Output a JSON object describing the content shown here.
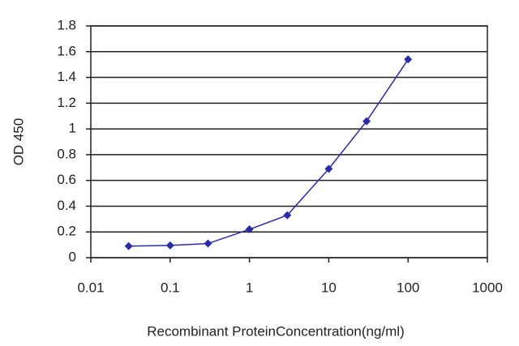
{
  "chart_data": {
    "type": "line",
    "x_label": "Recombinant ProteinConcentration(ng/ml)",
    "y_label": "OD 450",
    "x": [
      0.03,
      0.1,
      0.3,
      1,
      3,
      10,
      30,
      100
    ],
    "values": [
      0.09,
      0.095,
      0.11,
      0.22,
      0.33,
      0.69,
      1.06,
      1.54
    ],
    "color": "#2b2ba8",
    "xlog": true,
    "xlim": [
      0.01,
      1000
    ],
    "xticks": [
      0.01,
      0.1,
      1,
      10,
      100,
      1000
    ],
    "ylim": [
      0,
      1.8
    ],
    "yticks": [
      0,
      0.2,
      0.4,
      0.6,
      0.8,
      1,
      1.2,
      1.4,
      1.6,
      1.8
    ],
    "grid": true
  }
}
